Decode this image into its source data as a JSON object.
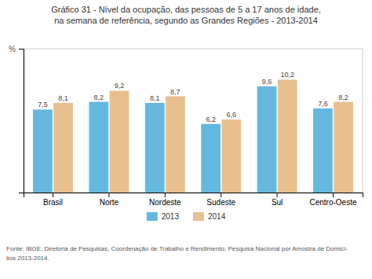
{
  "chart_data": {
    "type": "bar",
    "title": [
      "Gráfico 31 - Nível da ocupação, das pessoas de 5 a 17 anos de idade,",
      "na semana de referência, segundo as Grandes Regiões - 2013-2014"
    ],
    "ylabel": "%",
    "categories": [
      "Brasil",
      "Norte",
      "Nordeste",
      "Sudeste",
      "Sul",
      "Centro-Oeste"
    ],
    "series": [
      {
        "name": "2013",
        "color": "#64B8E0",
        "values": [
          7.5,
          8.2,
          8.1,
          6.2,
          9.6,
          7.6
        ],
        "value_labels": [
          "7,5",
          "8,2",
          "8,1",
          "6,2",
          "9,6",
          "7,6"
        ]
      },
      {
        "name": "2014",
        "color": "#E8C090",
        "values": [
          8.1,
          9.2,
          8.7,
          6.6,
          10.2,
          8.2
        ],
        "value_labels": [
          "8,1",
          "9,2",
          "8,7",
          "6,6",
          "10,2",
          "8,2"
        ]
      }
    ],
    "ylim": [
      0,
      13
    ],
    "tick_labels": "x",
    "data_labels": true,
    "legend": "bottom",
    "grid": false,
    "annotations": [
      "Fonte: IBGE, Diretoria de Pesquisas, Coordenação de Trabalho e Rendimento, Pesquisa Nacional por Amostra de Domicí-",
      "lios 2013-2014."
    ]
  }
}
